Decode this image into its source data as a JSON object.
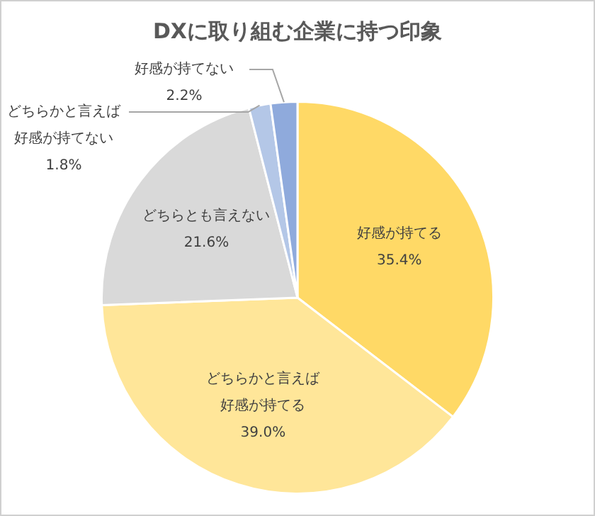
{
  "chart_data": {
    "type": "pie",
    "title": "DXに取り組む企業に持つ印象",
    "categories": [
      "好感が持てる",
      "どちらかと言えば好感が持てる",
      "どちらとも言えない",
      "どちらかと言えば好感が持てない",
      "好感が持てない"
    ],
    "values": [
      35.4,
      39.0,
      21.6,
      1.8,
      2.2
    ],
    "value_labels": [
      "35.4%",
      "39.0%",
      "21.6%",
      "1.8%",
      "2.2%"
    ],
    "colors": [
      "#ffd966",
      "#ffe699",
      "#d9d9d9",
      "#b4c7e7",
      "#8faadc"
    ],
    "legend": false
  }
}
